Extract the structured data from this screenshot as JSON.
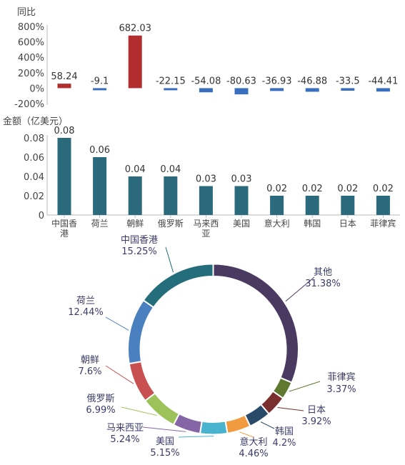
{
  "chart_data": [
    {
      "type": "bar",
      "ylabel": "同比",
      "categories": [
        "中国香港",
        "荷兰",
        "朝鲜",
        "俄罗斯",
        "马来西亚",
        "美国",
        "意大利",
        "韩国",
        "日本",
        "菲律宾"
      ],
      "values": [
        58.24,
        -9.1,
        682.03,
        -22.15,
        -54.08,
        -80.63,
        -36.93,
        -46.88,
        -33.5,
        -44.41
      ],
      "value_labels": [
        "58.24",
        "-9.1",
        "682.03",
        "-22.15",
        "-54.08",
        "-80.63",
        "-36.93",
        "-46.88",
        "-33.5",
        "-44.41"
      ],
      "yticks": [
        "-200%",
        "0%",
        "200%",
        "400%",
        "600%",
        "800%"
      ],
      "ylim": [
        -200,
        800
      ],
      "colors": {
        "positive": "#b22d2d",
        "negative": "#3a6fc0"
      }
    },
    {
      "type": "bar",
      "ylabel": "金额（亿美元）",
      "categories": [
        "中国香港",
        "荷兰",
        "朝鲜",
        "俄罗斯",
        "马来西亚",
        "美国",
        "意大利",
        "韩国",
        "日本",
        "菲律宾"
      ],
      "category_lines": [
        [
          "中国香",
          "港"
        ],
        [
          "荷兰"
        ],
        [
          "朝鲜"
        ],
        [
          "俄罗斯"
        ],
        [
          "马来西",
          "亚"
        ],
        [
          "美国"
        ],
        [
          "意大利"
        ],
        [
          "韩国"
        ],
        [
          "日本"
        ],
        [
          "菲律宾"
        ]
      ],
      "values": [
        0.08,
        0.06,
        0.04,
        0.04,
        0.03,
        0.03,
        0.02,
        0.02,
        0.02,
        0.02
      ],
      "value_labels": [
        "0.08",
        "0.06",
        "0.04",
        "0.04",
        "0.03",
        "0.03",
        "0.02",
        "0.02",
        "0.02",
        "0.02"
      ],
      "yticks": [
        "0",
        "0.02",
        "0.04",
        "0.06",
        "0.08"
      ],
      "ylim": [
        0,
        0.08
      ],
      "colors": {
        "bar": "#2a6a7c"
      }
    },
    {
      "type": "pie",
      "donut": true,
      "slices": [
        {
          "name": "其他",
          "value": 31.38,
          "label": "31.38%",
          "color": "#4a3960"
        },
        {
          "name": "菲律宾",
          "value": 3.37,
          "label": "3.37%",
          "color": "#5f7a30"
        },
        {
          "name": "日本",
          "value": 3.92,
          "label": "3.92%",
          "color": "#7a2e2e"
        },
        {
          "name": "韩国",
          "value": 4.2,
          "label": "4.2%",
          "color": "#2a4a6a"
        },
        {
          "name": "意大利",
          "value": 4.46,
          "label": "4.46%",
          "color": "#f29a40"
        },
        {
          "name": "美国",
          "value": 5.15,
          "label": "5.15%",
          "color": "#49b3cf"
        },
        {
          "name": "马来西亚",
          "value": 5.24,
          "label": "5.24%",
          "color": "#8565a5"
        },
        {
          "name": "俄罗斯",
          "value": 6.99,
          "label": "6.99%",
          "color": "#9ec25a"
        },
        {
          "name": "朝鲜",
          "value": 7.6,
          "label": "7.6%",
          "color": "#c85050"
        },
        {
          "name": "荷兰",
          "value": 12.44,
          "label": "12.44%",
          "color": "#4a80c0"
        },
        {
          "name": "中国香港",
          "value": 15.25,
          "label": "15.25%",
          "color": "#246d7a"
        }
      ]
    }
  ]
}
